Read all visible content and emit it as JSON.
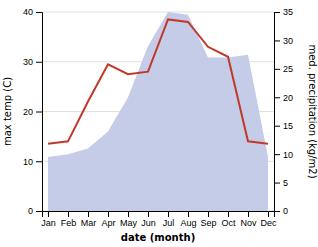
{
  "chart_data": {
    "type": "line",
    "categories": [
      "Jan",
      "Feb",
      "Mar",
      "Apr",
      "May",
      "Jun",
      "Jul",
      "Aug",
      "Sep",
      "Oct",
      "Nov",
      "Dec"
    ],
    "xlabel": "date (month)",
    "ylabel": "max temp (C)",
    "y2label": "med. precipitation (kg/m2)",
    "series": [
      {
        "type": "area",
        "axis": "y2",
        "color": "#c5cce8",
        "values": [
          9.5,
          10.0,
          11.0,
          14.0,
          20.0,
          29.0,
          35.0,
          34.5,
          27.0,
          27.0,
          27.5,
          9.5
        ]
      },
      {
        "type": "line",
        "color": "#c0392b",
        "values": [
          13.5,
          14.0,
          22.0,
          29.5,
          27.5,
          28.0,
          38.5,
          38.0,
          33.0,
          31.0,
          14.0,
          13.5
        ]
      }
    ],
    "ylim": [
      0,
      40
    ],
    "yticks": [
      0,
      10,
      20,
      30,
      40
    ],
    "y2lim": [
      0,
      35
    ],
    "y2ticks": [
      0,
      5,
      10,
      15,
      20,
      25,
      30,
      35
    ],
    "grid": true
  }
}
